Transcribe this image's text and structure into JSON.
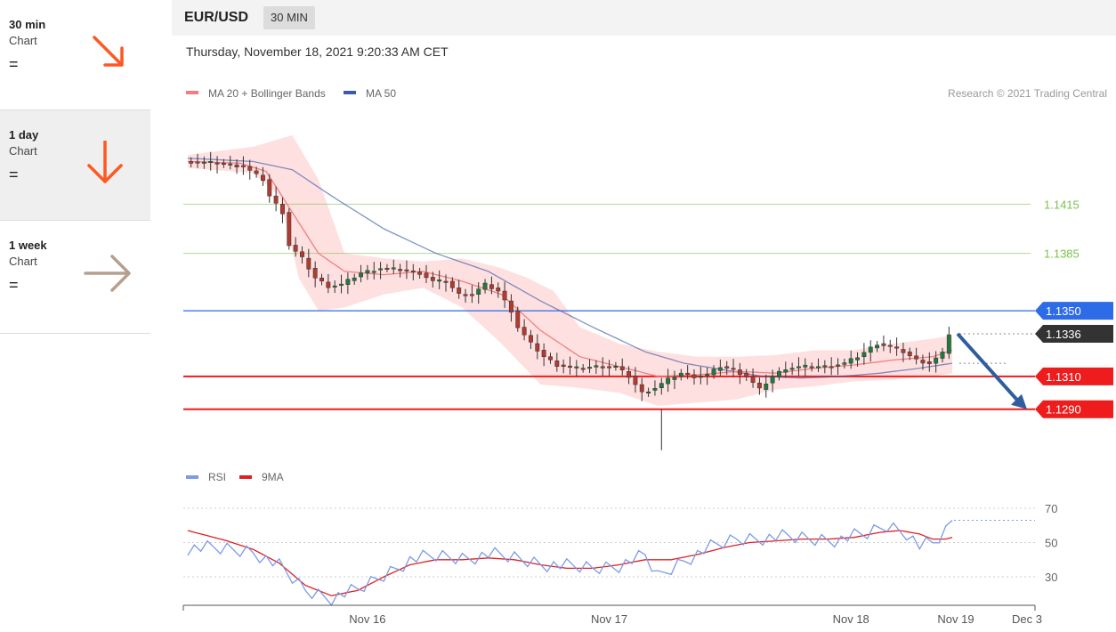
{
  "sidebar": {
    "items": [
      {
        "period": "30 min",
        "label": "Chart",
        "status": "=",
        "arrow": "down-right",
        "color": "#ff5722"
      },
      {
        "period": "1 day",
        "label": "Chart",
        "status": "=",
        "arrow": "down",
        "color": "#ff5722"
      },
      {
        "period": "1 week",
        "label": "Chart",
        "status": "=",
        "arrow": "right",
        "color": "#b59f8e"
      }
    ]
  },
  "header": {
    "pair": "EUR/USD",
    "timeframe": "30 MIN",
    "datetime": "Thursday, November 18, 2021 9:20:33 AM CET"
  },
  "chart_data": [
    {
      "type": "candlestick",
      "legend": [
        {
          "name": "MA 20 + Bollinger Bands",
          "color": "#f08080"
        },
        {
          "name": "MA 50",
          "color": "#3a5ca8"
        }
      ],
      "credit": "Research © 2021 Trading Central",
      "ylim": [
        1.126,
        1.147
      ],
      "x_ticks": [
        "Nov 16",
        "Nov 17",
        "Nov 18",
        "Nov 19",
        "Dec 3"
      ],
      "levels": [
        {
          "value": 1.1415,
          "label": "1.1415",
          "color": "#7cc04a",
          "style": "line"
        },
        {
          "value": 1.1385,
          "label": "1.1385",
          "color": "#7cc04a",
          "style": "line"
        },
        {
          "value": 1.135,
          "label": "1.1350",
          "color": "#2e6be6",
          "style": "tag"
        },
        {
          "value": 1.1336,
          "label": "1.1336",
          "color": "#333333",
          "style": "tag-dotted"
        },
        {
          "value": 1.131,
          "label": "1.1310",
          "color": "#ee1c1c",
          "style": "tag-thick"
        },
        {
          "value": 1.129,
          "label": "1.1290",
          "color": "#ee1c1c",
          "style": "tag-thick"
        }
      ],
      "forecast": {
        "from": 1.1336,
        "to": 1.129,
        "color": "#2f5d9e"
      },
      "price_path": [
        [
          0,
          1.1441
        ],
        [
          5,
          1.144
        ],
        [
          9,
          1.1438
        ],
        [
          12,
          1.143
        ],
        [
          13,
          1.142
        ],
        [
          15,
          1.141
        ],
        [
          16,
          1.139
        ],
        [
          18,
          1.1382
        ],
        [
          20,
          1.137
        ],
        [
          22,
          1.1365
        ],
        [
          24,
          1.1366
        ],
        [
          27,
          1.1373
        ],
        [
          30,
          1.1376
        ],
        [
          33,
          1.1375
        ],
        [
          36,
          1.1373
        ],
        [
          38,
          1.1368
        ],
        [
          40,
          1.1368
        ],
        [
          42,
          1.136
        ],
        [
          44,
          1.136
        ],
        [
          46,
          1.1366
        ],
        [
          48,
          1.1362
        ],
        [
          50,
          1.135
        ],
        [
          51,
          1.134
        ],
        [
          53,
          1.133
        ],
        [
          55,
          1.1322
        ],
        [
          57,
          1.1317
        ],
        [
          60,
          1.1315
        ],
        [
          63,
          1.1316
        ],
        [
          66,
          1.1316
        ],
        [
          68,
          1.131
        ],
        [
          70,
          1.13
        ],
        [
          72,
          1.1303
        ],
        [
          74,
          1.1308
        ],
        [
          76,
          1.1312
        ],
        [
          78,
          1.131
        ],
        [
          80,
          1.1311
        ],
        [
          82,
          1.1316
        ],
        [
          84,
          1.1314
        ],
        [
          86,
          1.131
        ],
        [
          88,
          1.1302
        ],
        [
          90,
          1.131
        ],
        [
          92,
          1.1315
        ],
        [
          95,
          1.1316
        ],
        [
          98,
          1.1316
        ],
        [
          101,
          1.1318
        ],
        [
          103,
          1.1322
        ],
        [
          106,
          1.133
        ],
        [
          108,
          1.1328
        ],
        [
          110,
          1.1325
        ],
        [
          112,
          1.132
        ],
        [
          114,
          1.1318
        ],
        [
          116,
          1.1324
        ],
        [
          117,
          1.1336
        ]
      ],
      "ma20_path": [
        [
          0,
          1.1441
        ],
        [
          8,
          1.144
        ],
        [
          12,
          1.1435
        ],
        [
          16,
          1.141
        ],
        [
          20,
          1.1385
        ],
        [
          24,
          1.1374
        ],
        [
          30,
          1.1372
        ],
        [
          36,
          1.1374
        ],
        [
          42,
          1.1368
        ],
        [
          48,
          1.136
        ],
        [
          54,
          1.1338
        ],
        [
          60,
          1.1322
        ],
        [
          66,
          1.1316
        ],
        [
          72,
          1.131
        ],
        [
          78,
          1.1311
        ],
        [
          84,
          1.1313
        ],
        [
          90,
          1.1312
        ],
        [
          96,
          1.1315
        ],
        [
          102,
          1.1317
        ],
        [
          108,
          1.132
        ],
        [
          114,
          1.1322
        ],
        [
          117,
          1.1326
        ]
      ],
      "bb_upper": [
        [
          0,
          1.1445
        ],
        [
          10,
          1.145
        ],
        [
          16,
          1.1457
        ],
        [
          20,
          1.143
        ],
        [
          24,
          1.1385
        ],
        [
          30,
          1.1382
        ],
        [
          36,
          1.138
        ],
        [
          42,
          1.1382
        ],
        [
          48,
          1.1376
        ],
        [
          52,
          1.137
        ],
        [
          56,
          1.1362
        ],
        [
          60,
          1.134
        ],
        [
          66,
          1.133
        ],
        [
          72,
          1.1325
        ],
        [
          78,
          1.1322
        ],
        [
          84,
          1.1322
        ],
        [
          90,
          1.1323
        ],
        [
          96,
          1.1326
        ],
        [
          102,
          1.1326
        ],
        [
          108,
          1.133
        ],
        [
          114,
          1.1333
        ],
        [
          117,
          1.1335
        ]
      ],
      "bb_lower": [
        [
          0,
          1.1437
        ],
        [
          10,
          1.1434
        ],
        [
          14,
          1.142
        ],
        [
          17,
          1.137
        ],
        [
          20,
          1.135
        ],
        [
          24,
          1.1352
        ],
        [
          30,
          1.136
        ],
        [
          36,
          1.1364
        ],
        [
          42,
          1.1352
        ],
        [
          48,
          1.133
        ],
        [
          54,
          1.1305
        ],
        [
          60,
          1.1303
        ],
        [
          66,
          1.13
        ],
        [
          72,
          1.1292
        ],
        [
          78,
          1.1294
        ],
        [
          84,
          1.1296
        ],
        [
          90,
          1.1302
        ],
        [
          96,
          1.1304
        ],
        [
          102,
          1.1307
        ],
        [
          108,
          1.1308
        ],
        [
          114,
          1.131
        ],
        [
          117,
          1.1312
        ]
      ],
      "ma50_path": [
        [
          0,
          1.1443
        ],
        [
          10,
          1.1441
        ],
        [
          16,
          1.1436
        ],
        [
          22,
          1.142
        ],
        [
          30,
          1.14
        ],
        [
          38,
          1.1385
        ],
        [
          46,
          1.1374
        ],
        [
          54,
          1.1356
        ],
        [
          62,
          1.134
        ],
        [
          70,
          1.1325
        ],
        [
          76,
          1.1318
        ],
        [
          82,
          1.1314
        ],
        [
          88,
          1.131
        ],
        [
          94,
          1.1309
        ],
        [
          100,
          1.131
        ],
        [
          106,
          1.1312
        ],
        [
          112,
          1.1315
        ],
        [
          117,
          1.1318
        ]
      ]
    },
    {
      "type": "line",
      "legend": [
        {
          "name": "RSI",
          "color": "#7b9be6"
        },
        {
          "name": "9MA",
          "color": "#e02020"
        }
      ],
      "y_ticks": [
        70,
        50,
        30
      ],
      "ylim": [
        15,
        85
      ],
      "rsi_path": [
        [
          0,
          47
        ],
        [
          6,
          46
        ],
        [
          10,
          45
        ],
        [
          14,
          36
        ],
        [
          18,
          22
        ],
        [
          22,
          18
        ],
        [
          26,
          22
        ],
        [
          30,
          31
        ],
        [
          34,
          40
        ],
        [
          38,
          42
        ],
        [
          42,
          41
        ],
        [
          46,
          43
        ],
        [
          50,
          41
        ],
        [
          54,
          38
        ],
        [
          58,
          36
        ],
        [
          62,
          35
        ],
        [
          66,
          37
        ],
        [
          70,
          42
        ],
        [
          72,
          30
        ],
        [
          76,
          40
        ],
        [
          80,
          47
        ],
        [
          84,
          52
        ],
        [
          88,
          53
        ],
        [
          92,
          53
        ],
        [
          96,
          52
        ],
        [
          100,
          52
        ],
        [
          104,
          55
        ],
        [
          107,
          60
        ],
        [
          110,
          56
        ],
        [
          112,
          48
        ],
        [
          114,
          49
        ],
        [
          116,
          56
        ],
        [
          117,
          63
        ]
      ],
      "ma9_path": [
        [
          0,
          57
        ],
        [
          6,
          51
        ],
        [
          10,
          46
        ],
        [
          14,
          38
        ],
        [
          18,
          25
        ],
        [
          22,
          19
        ],
        [
          26,
          22
        ],
        [
          30,
          30
        ],
        [
          34,
          37
        ],
        [
          38,
          40
        ],
        [
          42,
          40
        ],
        [
          46,
          41
        ],
        [
          50,
          40
        ],
        [
          54,
          37
        ],
        [
          58,
          35
        ],
        [
          62,
          35
        ],
        [
          66,
          37
        ],
        [
          70,
          40
        ],
        [
          74,
          40
        ],
        [
          78,
          43
        ],
        [
          82,
          47
        ],
        [
          86,
          50
        ],
        [
          90,
          51
        ],
        [
          94,
          52
        ],
        [
          98,
          52
        ],
        [
          102,
          53
        ],
        [
          106,
          56
        ],
        [
          109,
          57
        ],
        [
          112,
          55
        ],
        [
          114,
          52
        ],
        [
          116,
          52
        ],
        [
          117,
          53
        ]
      ]
    }
  ]
}
